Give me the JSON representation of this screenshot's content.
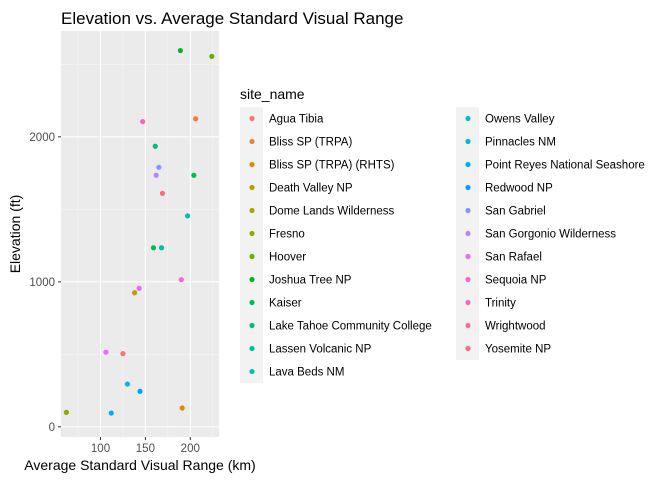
{
  "chart_data": {
    "type": "scatter",
    "title": "Elevation vs. Average Standard Visual Range",
    "xlabel": "Average Standard Visual Range (km)",
    "ylabel": "Elevation (ft)",
    "xlim": [
      56,
      232
    ],
    "ylim": [
      -70,
      2730
    ],
    "xticks": [
      100,
      150,
      200
    ],
    "yticks": [
      0,
      1000,
      2000
    ],
    "grid": true,
    "legend_title": "site_name",
    "legend_position": "right",
    "series": [
      {
        "name": "Agua Tibia",
        "color": "#F8766D",
        "points": [
          [
            125,
            505
          ]
        ]
      },
      {
        "name": "Bliss SP (TRPA)",
        "color": "#EB8335",
        "points": [
          [
            206,
            2125
          ]
        ]
      },
      {
        "name": "Bliss SP (TRPA) (RHTS)",
        "color": "#DA8F00",
        "points": [
          [
            191,
            130
          ]
        ]
      },
      {
        "name": "Death Valley NP",
        "color": "#C49A00",
        "points": [
          [
            138,
            925
          ]
        ]
      },
      {
        "name": "Dome Lands Wilderness",
        "color": "#ACA300",
        "points": []
      },
      {
        "name": "Fresno",
        "color": "#8EAB00",
        "points": [
          [
            62,
            100
          ]
        ]
      },
      {
        "name": "Hoover",
        "color": "#64B200",
        "points": [
          [
            224,
            2555
          ]
        ]
      },
      {
        "name": "Joshua Tree NP",
        "color": "#00B81B",
        "points": [
          [
            189,
            2595
          ]
        ]
      },
      {
        "name": "Kaiser",
        "color": "#00BC56",
        "points": [
          [
            159,
            1235
          ],
          [
            204,
            1735
          ]
        ]
      },
      {
        "name": "Lake Tahoe Community College",
        "color": "#00BE7D",
        "points": [
          [
            161,
            1935
          ]
        ]
      },
      {
        "name": "Lassen Volcanic NP",
        "color": "#00C09F",
        "points": [
          [
            168,
            1235
          ]
        ]
      },
      {
        "name": "Lava Beds NM",
        "color": "#00C0BC",
        "points": [
          [
            197,
            1455
          ]
        ]
      },
      {
        "name": "Owens Valley",
        "color": "#00BDD4",
        "points": []
      },
      {
        "name": "Pinnacles NM",
        "color": "#00B7E8",
        "points": [
          [
            130,
            295
          ]
        ]
      },
      {
        "name": "Point Reyes National Seashore",
        "color": "#00AEF8",
        "points": [
          [
            112,
            95
          ]
        ]
      },
      {
        "name": "Redwood NP",
        "color": "#00A2FF",
        "points": [
          [
            144,
            245
          ]
        ]
      },
      {
        "name": "San Gabriel",
        "color": "#7F96FF",
        "points": [
          [
            165,
            1790
          ]
        ]
      },
      {
        "name": "San Gorgonio Wilderness",
        "color": "#BB83FF",
        "points": [
          [
            162,
            1735
          ]
        ]
      },
      {
        "name": "San Rafael",
        "color": "#E16FF8",
        "points": [
          [
            143,
            955
          ],
          [
            106,
            515
          ]
        ]
      },
      {
        "name": "Sequoia NP",
        "color": "#F862DE",
        "points": [
          [
            190,
            1015
          ]
        ]
      },
      {
        "name": "Trinity",
        "color": "#FF61C0",
        "points": [
          [
            147,
            2105
          ]
        ]
      },
      {
        "name": "Wrightwood",
        "color": "#FF67A1",
        "points": []
      },
      {
        "name": "Yosemite NP",
        "color": "#FF6C81",
        "points": [
          [
            169,
            1610
          ]
        ]
      }
    ]
  }
}
